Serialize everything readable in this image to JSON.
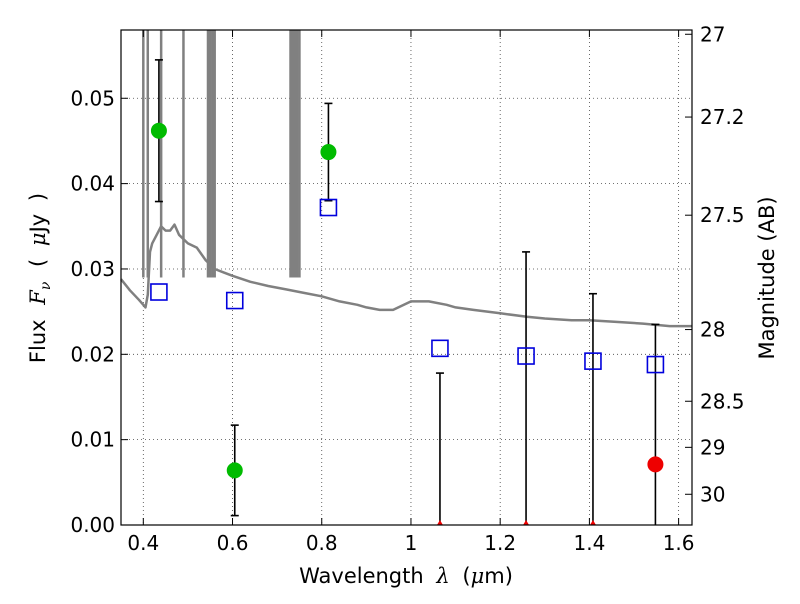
{
  "chart_data": {
    "type": "scatter",
    "title": "",
    "xlabel": "Wavelength",
    "xlabel_symbol": "λ",
    "xlabel_unit_open": "(",
    "xlabel_unit_mu": "μ",
    "xlabel_unit_rest": "m)",
    "ylabel": "Flux",
    "ylabel_symbol": "F",
    "ylabel_subscript": "ν",
    "ylabel_unit_open": "(",
    "ylabel_unit_mu": "μ",
    "ylabel_unit_rest": "Jy",
    "ylabel_unit_close": ")",
    "y2label": "Magnitude (AB)",
    "xlim": [
      0.35,
      1.63
    ],
    "ylim": [
      0.0,
      0.058
    ],
    "grid": true,
    "grid_style": "dotted",
    "xticks": [
      0.4,
      0.6,
      0.8,
      1.0,
      1.2,
      1.4,
      1.6
    ],
    "xtick_labels": [
      "0.4",
      "0.6",
      "0.8",
      "1",
      "1.2",
      "1.4",
      "1.6"
    ],
    "yticks": [
      0.0,
      0.01,
      0.02,
      0.03,
      0.04,
      0.05
    ],
    "ytick_labels": [
      "0.00",
      "0.01",
      "0.02",
      "0.03",
      "0.04",
      "0.05"
    ],
    "y2ticks": [
      {
        "label": "27",
        "flux": 0.0575
      },
      {
        "label": "27.2",
        "flux": 0.0478
      },
      {
        "label": "27.5",
        "flux": 0.0363
      },
      {
        "label": "28",
        "flux": 0.0229
      },
      {
        "label": "28.5",
        "flux": 0.0145
      },
      {
        "label": "29",
        "flux": 0.0091
      },
      {
        "label": "30",
        "flux": 0.0036
      }
    ],
    "colors": {
      "model": "#808080",
      "detection": "#00bb00",
      "upper_limit": "#ee0000",
      "model_band": "#0000dd",
      "errorbar": "#000000",
      "grid": "#444444"
    },
    "series": [
      {
        "kind": "model_spectrum",
        "x": [
          0.35,
          0.37,
          0.39,
          0.4,
          0.405,
          0.41,
          0.415,
          0.42,
          0.43,
          0.44,
          0.45,
          0.46,
          0.47,
          0.48,
          0.5,
          0.52,
          0.54,
          0.56,
          0.58,
          0.6,
          0.64,
          0.68,
          0.72,
          0.76,
          0.8,
          0.84,
          0.88,
          0.9,
          0.93,
          0.96,
          1.0,
          1.04,
          1.08,
          1.1,
          1.14,
          1.2,
          1.26,
          1.3,
          1.36,
          1.4,
          1.46,
          1.52,
          1.58,
          1.63
        ],
        "y": [
          0.0288,
          0.0275,
          0.0264,
          0.0258,
          0.0255,
          0.027,
          0.032,
          0.033,
          0.034,
          0.035,
          0.0345,
          0.0345,
          0.0352,
          0.034,
          0.033,
          0.0325,
          0.031,
          0.03,
          0.0296,
          0.0292,
          0.0285,
          0.028,
          0.0276,
          0.0272,
          0.0268,
          0.0262,
          0.0258,
          0.0255,
          0.0252,
          0.0252,
          0.0262,
          0.0262,
          0.0258,
          0.0255,
          0.0252,
          0.0248,
          0.0244,
          0.0242,
          0.024,
          0.024,
          0.0238,
          0.0236,
          0.0233,
          0.0233
        ]
      },
      {
        "kind": "emission_lines",
        "x": [
          0.4,
          0.41,
          0.44,
          0.49,
          0.545,
          0.55,
          0.555,
          0.56,
          0.73,
          0.735,
          0.74,
          0.745,
          0.75
        ]
      },
      {
        "kind": "model_band_flux",
        "x": [
          0.435,
          0.605,
          0.815,
          1.065,
          1.258,
          1.408,
          1.548
        ],
        "y": [
          0.0273,
          0.0263,
          0.0372,
          0.0207,
          0.0198,
          0.0192,
          0.0188
        ]
      },
      {
        "kind": "detections",
        "x": [
          0.435,
          0.605,
          0.815
        ],
        "y": [
          0.0462,
          0.0064,
          0.0437
        ],
        "err": [
          0.0083,
          0.0053,
          0.0057
        ]
      },
      {
        "kind": "upper_limits",
        "x": [
          1.065,
          1.258,
          1.408,
          1.548
        ],
        "y": [
          0.0,
          0.0,
          0.0,
          0.0071
        ],
        "err_upper": [
          0.0178,
          0.032,
          0.0271,
          0.0235
        ]
      }
    ]
  }
}
